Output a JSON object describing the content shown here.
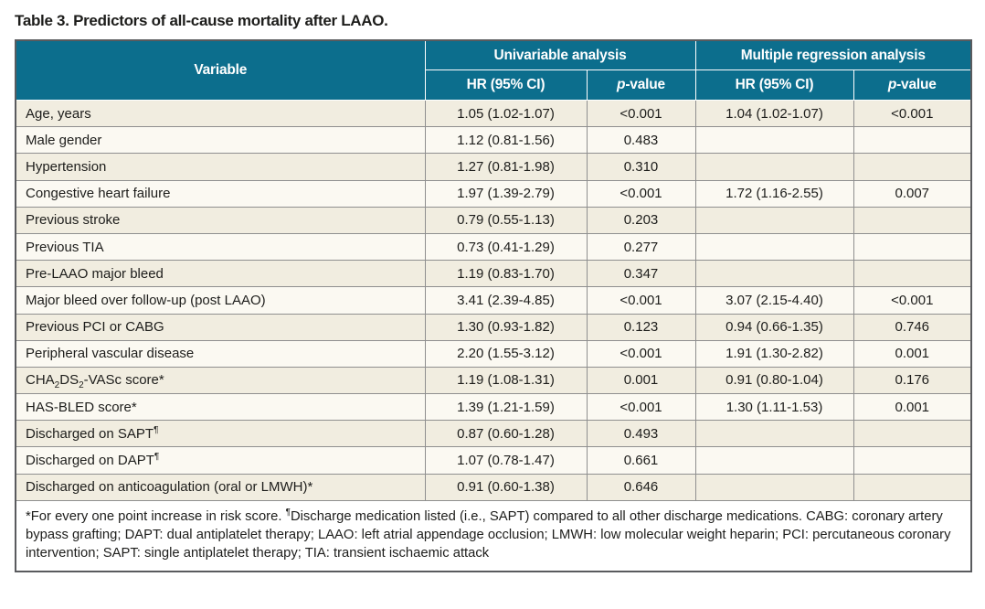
{
  "title": "Table 3. Predictors of all-cause mortality after LAAO.",
  "table": {
    "columns": {
      "variable": "Variable",
      "group_univariable": "Univariable analysis",
      "group_multiple": "Multiple regression analysis",
      "hr": "HR (95% CI)",
      "p": [
        {
          "t": "p",
          "italic": true
        },
        {
          "t": "-value"
        }
      ]
    },
    "rows": [
      {
        "variable": [
          {
            "t": "Age, years"
          }
        ],
        "uni_hr": "1.05 (1.02-1.07)",
        "uni_p": "<0.001",
        "multi_hr": "1.04 (1.02-1.07)",
        "multi_p": "<0.001"
      },
      {
        "variable": [
          {
            "t": "Male gender"
          }
        ],
        "uni_hr": "1.12 (0.81-1.56)",
        "uni_p": "0.483",
        "multi_hr": "",
        "multi_p": ""
      },
      {
        "variable": [
          {
            "t": "Hypertension"
          }
        ],
        "uni_hr": "1.27 (0.81-1.98)",
        "uni_p": "0.310",
        "multi_hr": "",
        "multi_p": ""
      },
      {
        "variable": [
          {
            "t": "Congestive heart failure"
          }
        ],
        "uni_hr": "1.97 (1.39-2.79)",
        "uni_p": "<0.001",
        "multi_hr": "1.72 (1.16-2.55)",
        "multi_p": "0.007"
      },
      {
        "variable": [
          {
            "t": "Previous stroke"
          }
        ],
        "uni_hr": "0.79 (0.55-1.13)",
        "uni_p": "0.203",
        "multi_hr": "",
        "multi_p": ""
      },
      {
        "variable": [
          {
            "t": "Previous TIA"
          }
        ],
        "uni_hr": "0.73 (0.41-1.29)",
        "uni_p": "0.277",
        "multi_hr": "",
        "multi_p": ""
      },
      {
        "variable": [
          {
            "t": "Pre-LAAO major bleed"
          }
        ],
        "uni_hr": "1.19 (0.83-1.70)",
        "uni_p": "0.347",
        "multi_hr": "",
        "multi_p": ""
      },
      {
        "variable": [
          {
            "t": "Major bleed over follow-up (post LAAO)"
          }
        ],
        "uni_hr": "3.41 (2.39-4.85)",
        "uni_p": "<0.001",
        "multi_hr": "3.07 (2.15-4.40)",
        "multi_p": "<0.001"
      },
      {
        "variable": [
          {
            "t": "Previous PCI or CABG"
          }
        ],
        "uni_hr": "1.30 (0.93-1.82)",
        "uni_p": "0.123",
        "multi_hr": "0.94 (0.66-1.35)",
        "multi_p": "0.746"
      },
      {
        "variable": [
          {
            "t": "Peripheral vascular disease"
          }
        ],
        "uni_hr": "2.20 (1.55-3.12)",
        "uni_p": "<0.001",
        "multi_hr": "1.91 (1.30-2.82)",
        "multi_p": "0.001"
      },
      {
        "variable": [
          {
            "t": "CHA"
          },
          {
            "t": "2",
            "sub": true
          },
          {
            "t": "DS"
          },
          {
            "t": "2",
            "sub": true
          },
          {
            "t": "-VASc score*"
          }
        ],
        "uni_hr": "1.19 (1.08-1.31)",
        "uni_p": "0.001",
        "multi_hr": "0.91 (0.80-1.04)",
        "multi_p": "0.176"
      },
      {
        "variable": [
          {
            "t": "HAS-BLED score*"
          }
        ],
        "uni_hr": "1.39 (1.21-1.59)",
        "uni_p": "<0.001",
        "multi_hr": "1.30 (1.11-1.53)",
        "multi_p": "0.001"
      },
      {
        "variable": [
          {
            "t": "Discharged on SAPT"
          },
          {
            "t": "¶",
            "sup": true
          }
        ],
        "uni_hr": "0.87 (0.60-1.28)",
        "uni_p": "0.493",
        "multi_hr": "",
        "multi_p": ""
      },
      {
        "variable": [
          {
            "t": "Discharged on DAPT"
          },
          {
            "t": "¶",
            "sup": true
          }
        ],
        "uni_hr": "1.07 (0.78-1.47)",
        "uni_p": "0.661",
        "multi_hr": "",
        "multi_p": ""
      },
      {
        "variable": [
          {
            "t": "Discharged on anticoagulation (oral or LMWH)*"
          }
        ],
        "uni_hr": "0.91 (0.60-1.38)",
        "uni_p": "0.646",
        "multi_hr": "",
        "multi_p": ""
      }
    ],
    "footnote": [
      {
        "t": "*For every one point increase in risk score. "
      },
      {
        "t": "¶",
        "sup": true
      },
      {
        "t": "Discharge medication listed (i.e., SAPT) compared to all other discharge medications. CABG: coronary artery bypass grafting; DAPT: dual antiplatelet therapy; LAAO: left atrial appendage occlusion; LMWH: low molecular weight heparin; PCI: percutaneous coronary intervention; SAPT: single antiplatelet therapy; TIA: transient ischaemic attack"
      }
    ]
  },
  "colors": {
    "header_bg": "#0c6e8d",
    "header_text": "#ffffff",
    "row_cream": "#f1ede0",
    "row_white": "#fbf9f2",
    "grid_line": "#8f8f8f",
    "outer_border": "#5a5b5e",
    "body_text": "#1d1d1b"
  }
}
